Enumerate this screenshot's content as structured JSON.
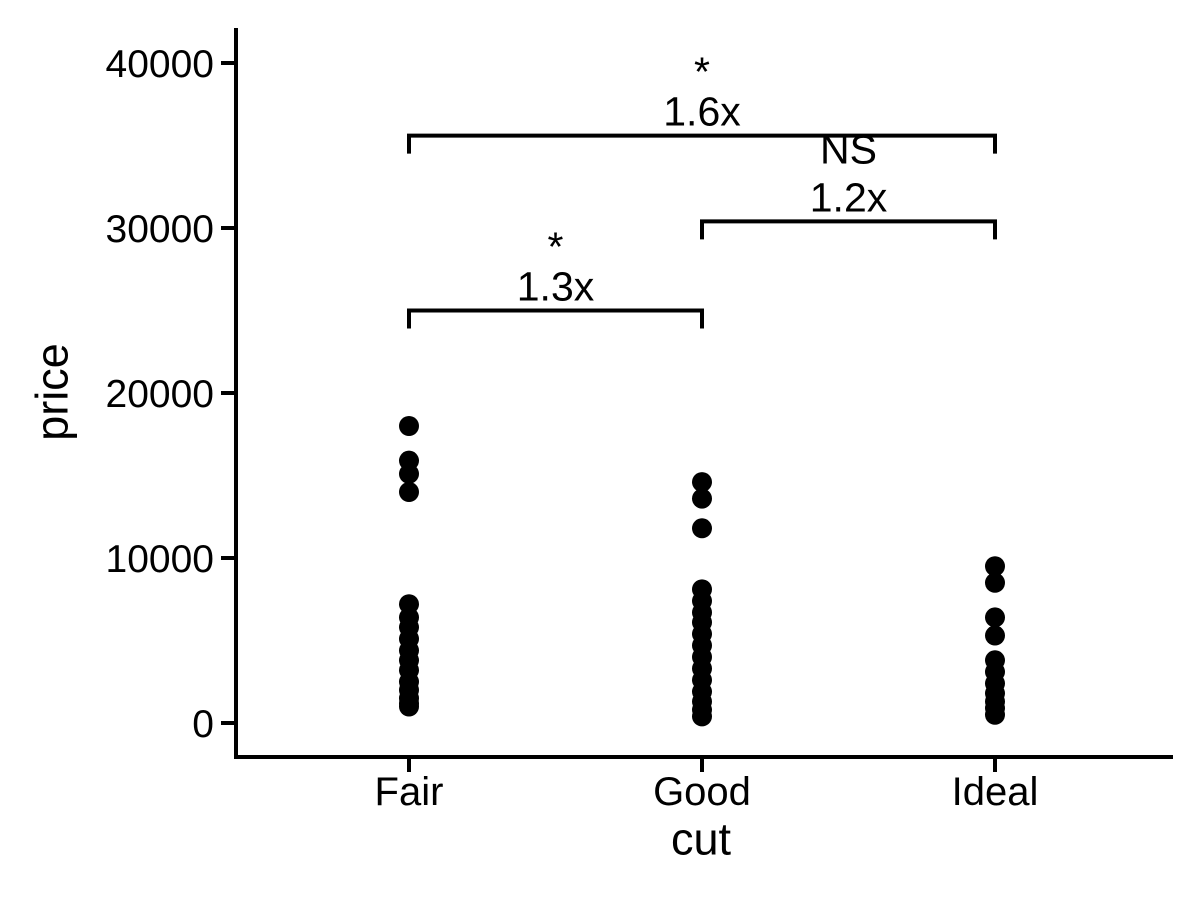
{
  "chart_data": {
    "type": "scatter",
    "subtype": "strip-plot-with-significance-brackets",
    "title": "",
    "xlabel": "cut",
    "ylabel": "price",
    "categories": [
      "Fair",
      "Good",
      "Ideal"
    ],
    "y_ticks": [
      0,
      10000,
      20000,
      30000,
      40000
    ],
    "ylim": [
      0,
      42000
    ],
    "grid": "off",
    "legend": "none",
    "background_color": "#ffffff",
    "axis_color": "#000000",
    "point_color": "#000000",
    "series": [
      {
        "name": "Fair",
        "values": [
          18000,
          15900,
          15100,
          14000,
          7200,
          6400,
          5800,
          5100,
          4400,
          3800,
          3200,
          2500,
          2000,
          1500,
          1200,
          1000
        ]
      },
      {
        "name": "Good",
        "values": [
          14600,
          13600,
          11800,
          8100,
          7400,
          6700,
          6100,
          5400,
          4700,
          4000,
          3300,
          2600,
          1900,
          1300,
          800,
          400
        ]
      },
      {
        "name": "Ideal",
        "values": [
          9500,
          8500,
          6400,
          5300,
          3800,
          3100,
          2400,
          1800,
          1300,
          900,
          500
        ]
      }
    ],
    "comparisons": [
      {
        "group1": "Fair",
        "group2": "Ideal",
        "significance": "*",
        "ratio": "1.6x",
        "bar_y": 35600
      },
      {
        "group1": "Good",
        "group2": "Ideal",
        "significance": "NS",
        "ratio": "1.2x",
        "bar_y": 30400
      },
      {
        "group1": "Fair",
        "group2": "Good",
        "significance": "*",
        "ratio": "1.3x",
        "bar_y": 25000
      }
    ]
  }
}
